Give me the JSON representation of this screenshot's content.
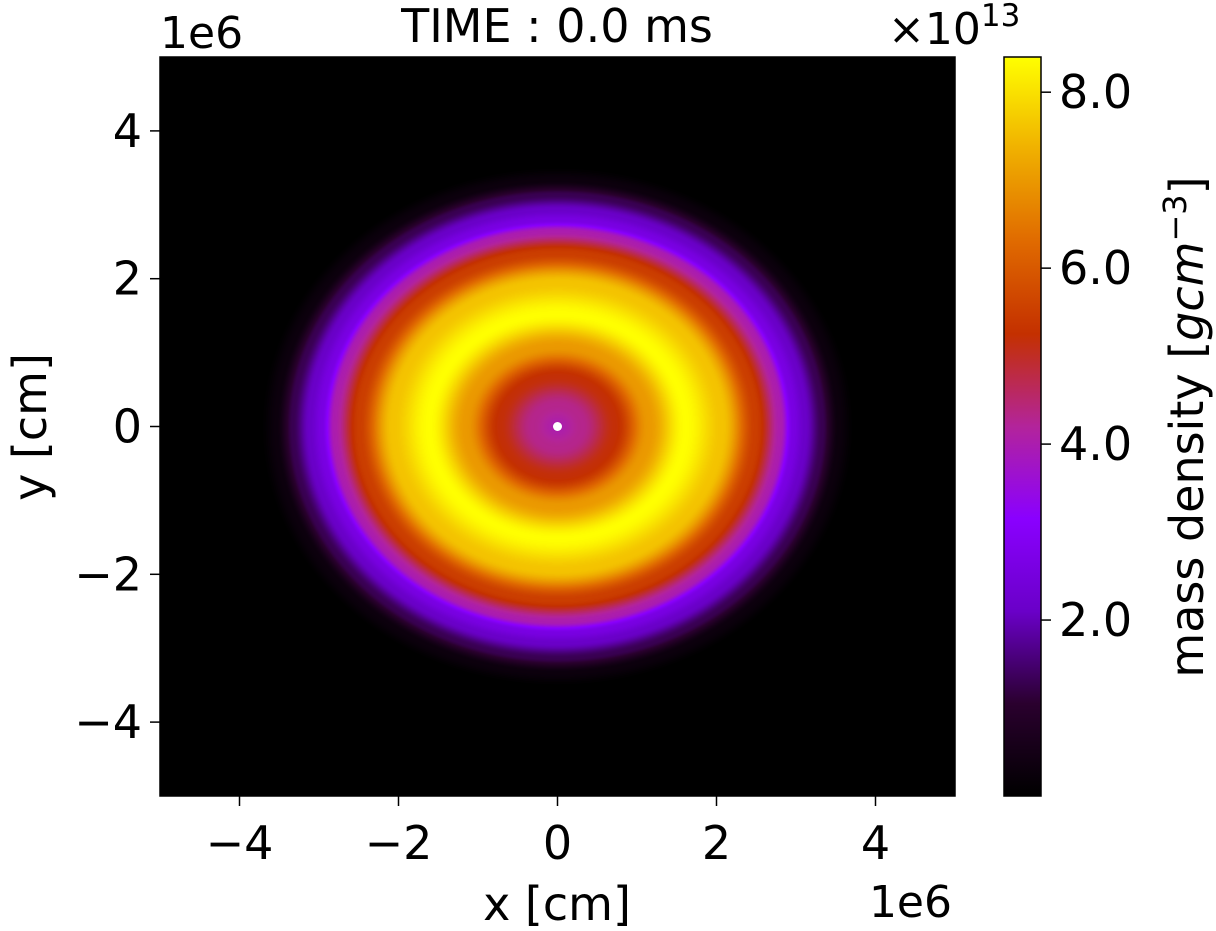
{
  "chart_data": {
    "type": "heatmap",
    "title": "TIME : 0.0 ms",
    "xlabel": "x [cm]",
    "ylabel": "y [cm]",
    "xlim": [
      -5,
      5
    ],
    "ylim": [
      -5,
      5
    ],
    "x_offset_text": "1e6",
    "y_offset_text": "1e6",
    "xticks": [
      -4,
      -2,
      0,
      2,
      4
    ],
    "yticks": [
      -4,
      -2,
      0,
      2,
      4
    ],
    "xtick_labels": [
      "−4",
      "−2",
      "0",
      "2",
      "4"
    ],
    "ytick_labels": [
      "−4",
      "−2",
      "0",
      "2",
      "4"
    ],
    "grid": false,
    "colormap": "gnuplot",
    "colormap_stops": [
      "#000000",
      "#2a002e",
      "#6a00c8",
      "#8a00ff",
      "#b3249b",
      "#c43000",
      "#e06a00",
      "#f0b000",
      "#ffff00"
    ],
    "colorbar": {
      "label_text": "mass density [",
      "label_math": "gcm",
      "label_exponent": "−3",
      "label_close": "]",
      "multiplier_prefix": "×10",
      "multiplier_exponent": "13",
      "range": [
        0.0,
        8.4
      ],
      "ticks": [
        2.0,
        4.0,
        6.0,
        8.0
      ],
      "tick_labels": [
        "2.0",
        "4.0",
        "6.0",
        "8.0"
      ]
    },
    "density_field": {
      "description_units": "density in units of 1e13 g/cm^3, radius in units of 1e6 cm",
      "radial_profile": [
        {
          "r": 0.0,
          "rho": 4.0
        },
        {
          "r": 0.3,
          "rho": 4.3
        },
        {
          "r": 0.7,
          "rho": 5.2
        },
        {
          "r": 1.1,
          "rho": 7.0
        },
        {
          "r": 1.55,
          "rho": 8.4
        },
        {
          "r": 2.0,
          "rho": 7.6
        },
        {
          "r": 2.4,
          "rho": 5.5
        },
        {
          "r": 2.7,
          "rho": 4.0
        },
        {
          "r": 2.85,
          "rho": 2.6
        },
        {
          "r": 3.0,
          "rho": 2.1
        },
        {
          "r": 3.2,
          "rho": 1.3
        },
        {
          "r": 3.4,
          "rho": 0.3
        },
        {
          "r": 3.6,
          "rho": 0.0
        }
      ],
      "center": [
        0,
        0
      ],
      "x_stretch": 1.04,
      "y_stretch": 0.98
    },
    "markers": [
      {
        "x": 0,
        "y": 0,
        "color": "#ffffff"
      }
    ]
  }
}
